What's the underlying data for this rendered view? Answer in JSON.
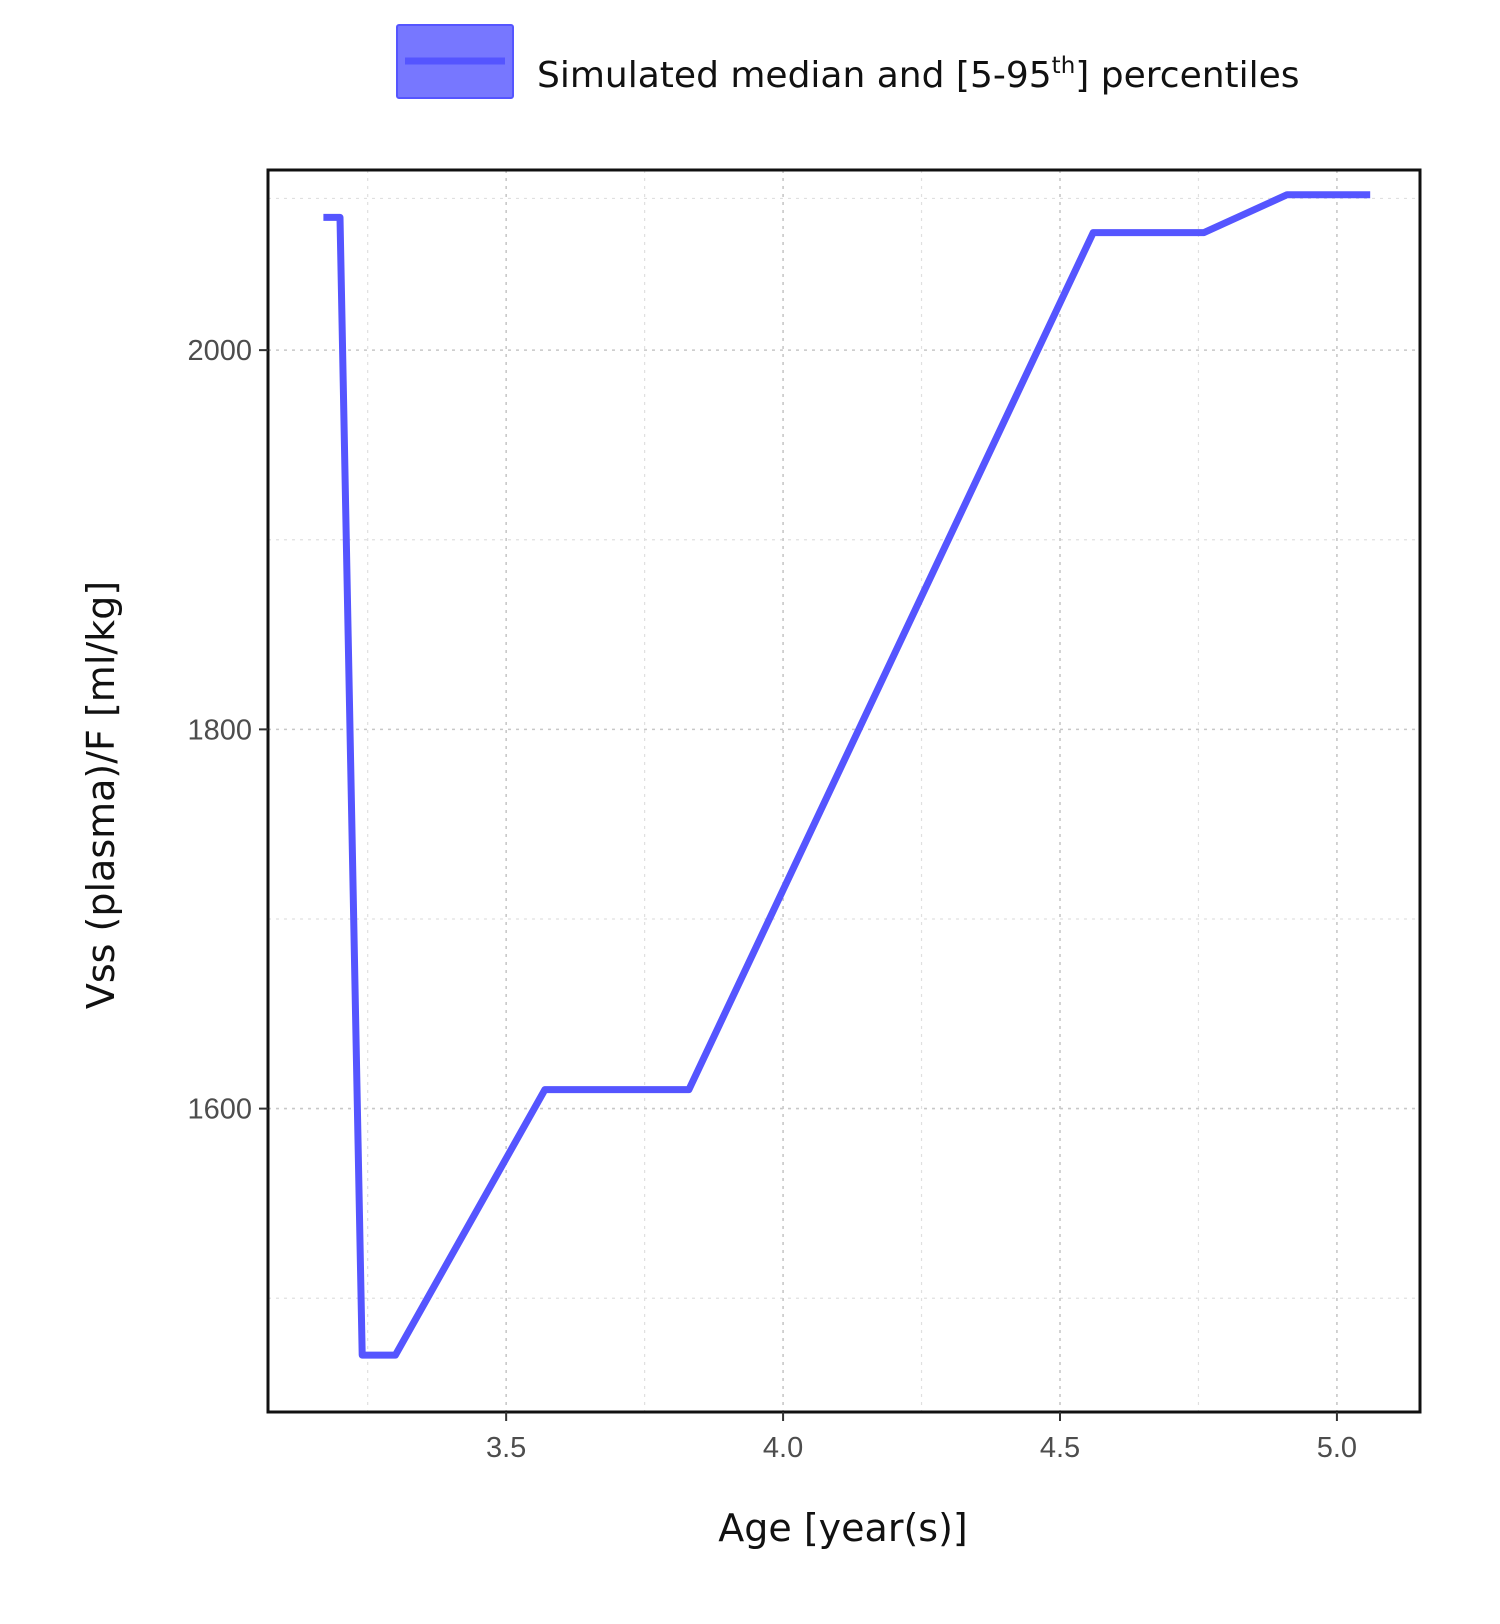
{
  "chart_data": {
    "type": "line",
    "title": "",
    "xlabel": "Age [year(s)]",
    "ylabel": "Vss (plasma)/F [ml/kg]",
    "xlim": [
      3.07,
      5.15
    ],
    "ylim": [
      1440,
      2095
    ],
    "x_ticks": [
      {
        "value": 3.5,
        "label": "3.5"
      },
      {
        "value": 4.0,
        "label": "4.0"
      },
      {
        "value": 4.5,
        "label": "4.5"
      },
      {
        "value": 5.0,
        "label": "5.0"
      }
    ],
    "x_minor_ticks": [
      3.25,
      3.75,
      4.25,
      4.75
    ],
    "y_ticks": [
      {
        "value": 1600,
        "label": "1600"
      },
      {
        "value": 1800,
        "label": "1800"
      },
      {
        "value": 2000,
        "label": "2000"
      }
    ],
    "y_minor_ticks": [
      1500,
      1700,
      1900,
      2080
    ],
    "grid": true,
    "legend_position": "top",
    "legend": {
      "label_main": "Simulated median and [5-95",
      "label_sup": "th",
      "label_end": "] percentiles",
      "fill_color": "#7777ff",
      "line_color": "#5555ff"
    },
    "series": [
      {
        "color": "#5555ff",
        "x": [
          3.17,
          3.2,
          3.24,
          3.3,
          3.57,
          3.83,
          4.56,
          4.76,
          4.91,
          5.06
        ],
        "y": [
          2070,
          2070,
          1470,
          1470,
          1610,
          1610,
          2062,
          2062,
          2082,
          2082
        ]
      }
    ]
  }
}
